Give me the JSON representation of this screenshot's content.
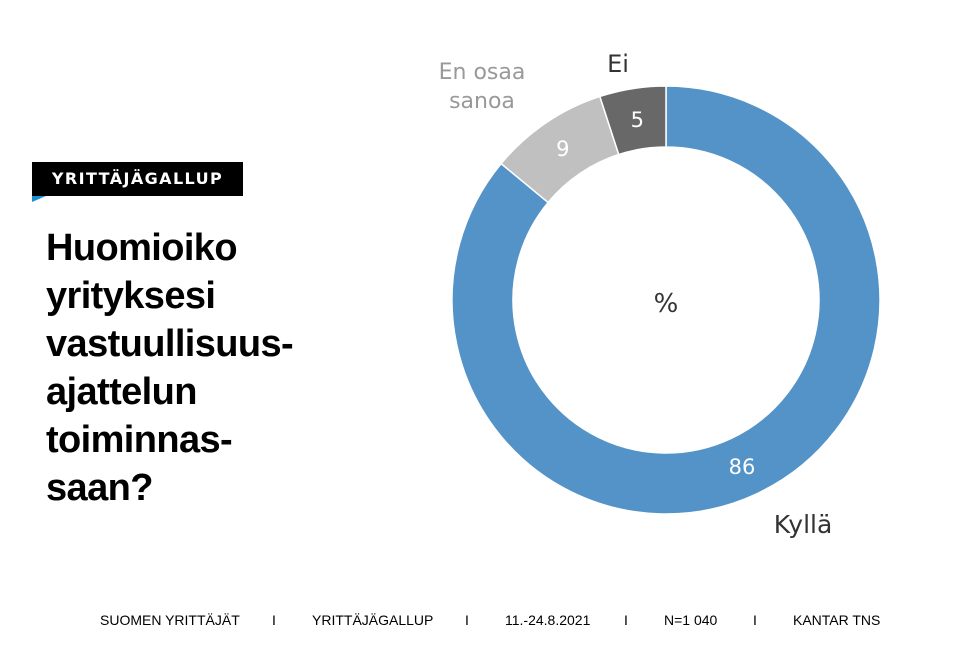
{
  "badge": "YRITTÄJÄGALLUP",
  "title": "Huomioiko\nyrityksesi\nvastuullisuus-\najattelun\ntoiminnas-\nsaan?",
  "chart_data": {
    "type": "pie",
    "donut": true,
    "center_label": "%",
    "slices": [
      {
        "label": "Kyllä",
        "value": 86,
        "color": "#5393c7"
      },
      {
        "label": "En osaa sanoa",
        "value": 9,
        "color": "#c0c0c0"
      },
      {
        "label": "Ei",
        "value": 5,
        "color": "#686868"
      }
    ],
    "start": "top",
    "direction": "counterclockwise from top for small slices"
  },
  "footer": {
    "publisher": "SUOMEN YRITTÄJÄT",
    "survey": "YRITTÄJÄGALLUP",
    "dates": "11.-24.8.2021",
    "sample": "N=1 040",
    "source": "KANTAR TNS",
    "separator": "I"
  },
  "colors": {
    "badge_bg": "#000000",
    "badge_accent": "#1c8fd0",
    "label_dark": "#333333",
    "label_gray": "#999999"
  }
}
